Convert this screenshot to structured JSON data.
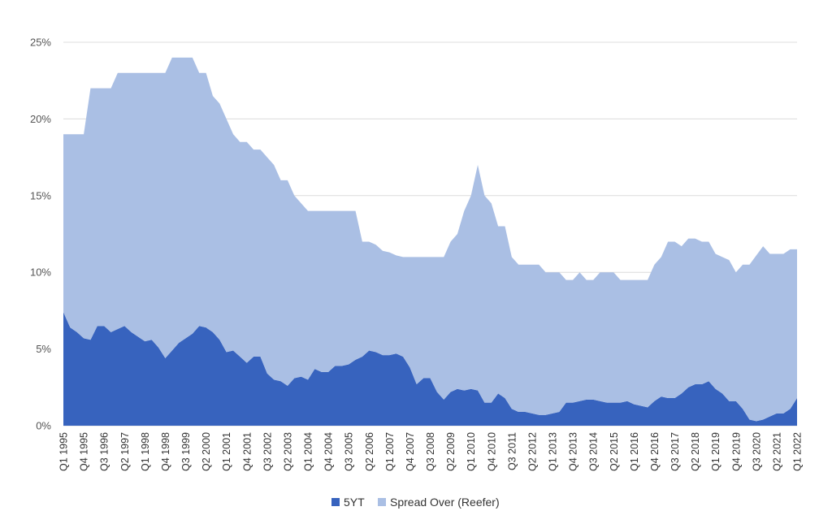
{
  "chart_data": {
    "type": "area",
    "stacked": true,
    "ylim": [
      0,
      0.25
    ],
    "y_ticks": [
      {
        "value": 0,
        "label": "0%"
      },
      {
        "value": 0.05,
        "label": "5%"
      },
      {
        "value": 0.1,
        "label": "10%"
      },
      {
        "value": 0.15,
        "label": "15%"
      },
      {
        "value": 0.2,
        "label": "20%"
      },
      {
        "value": 0.25,
        "label": "25%"
      }
    ],
    "grid": true,
    "legend_position": "bottom",
    "x_tick_labels": [
      "Q1 1995",
      "Q4 1995",
      "Q3 1996",
      "Q2 1997",
      "Q1 1998",
      "Q4 1998",
      "Q3 1999",
      "Q2 2000",
      "Q1 2001",
      "Q4 2001",
      "Q3 2002",
      "Q2 2003",
      "Q1 2004",
      "Q4 2004",
      "Q3 2005",
      "Q2 2006",
      "Q1 2007",
      "Q4 2007",
      "Q3 2008",
      "Q2 2009",
      "Q1 2010",
      "Q4 2010",
      "Q3 2011",
      "Q2 2012",
      "Q1 2013",
      "Q4 2013",
      "Q3 2014",
      "Q2 2015",
      "Q1 2016",
      "Q4 2016",
      "Q3 2017",
      "Q2 2018",
      "Q1 2019",
      "Q4 2019",
      "Q3 2020",
      "Q2 2021",
      "Q1 2022"
    ],
    "series": [
      {
        "name": "5YT",
        "color": "#3763be",
        "values": [
          0.074,
          0.064,
          0.061,
          0.057,
          0.056,
          0.065,
          0.065,
          0.061,
          0.063,
          0.065,
          0.061,
          0.058,
          0.055,
          0.056,
          0.051,
          0.044,
          0.049,
          0.054,
          0.057,
          0.06,
          0.065,
          0.064,
          0.061,
          0.056,
          0.048,
          0.049,
          0.045,
          0.041,
          0.045,
          0.045,
          0.034,
          0.03,
          0.029,
          0.026,
          0.031,
          0.032,
          0.03,
          0.037,
          0.035,
          0.035,
          0.039,
          0.039,
          0.04,
          0.043,
          0.045,
          0.049,
          0.048,
          0.046,
          0.046,
          0.047,
          0.045,
          0.038,
          0.027,
          0.031,
          0.031,
          0.022,
          0.017,
          0.022,
          0.024,
          0.023,
          0.024,
          0.023,
          0.015,
          0.015,
          0.021,
          0.018,
          0.011,
          0.009,
          0.009,
          0.008,
          0.007,
          0.007,
          0.008,
          0.009,
          0.015,
          0.015,
          0.016,
          0.017,
          0.017,
          0.016,
          0.015,
          0.015,
          0.015,
          0.016,
          0.014,
          0.013,
          0.012,
          0.016,
          0.019,
          0.018,
          0.018,
          0.021,
          0.025,
          0.027,
          0.027,
          0.029,
          0.024,
          0.021,
          0.016,
          0.016,
          0.011,
          0.004,
          0.003,
          0.004,
          0.006,
          0.008,
          0.008,
          0.011,
          0.018
        ]
      },
      {
        "name": "Spread Over (Reefer)",
        "color": "#aabfe4",
        "values": [
          0.116,
          0.126,
          0.129,
          0.133,
          0.164,
          0.155,
          0.155,
          0.159,
          0.167,
          0.165,
          0.169,
          0.172,
          0.175,
          0.174,
          0.179,
          0.186,
          0.191,
          0.186,
          0.183,
          0.18,
          0.165,
          0.166,
          0.154,
          0.154,
          0.152,
          0.141,
          0.14,
          0.144,
          0.135,
          0.135,
          0.141,
          0.14,
          0.131,
          0.134,
          0.119,
          0.113,
          0.11,
          0.103,
          0.105,
          0.105,
          0.101,
          0.101,
          0.1,
          0.097,
          0.075,
          0.071,
          0.07,
          0.068,
          0.067,
          0.064,
          0.065,
          0.072,
          0.083,
          0.079,
          0.079,
          0.088,
          0.093,
          0.098,
          0.101,
          0.117,
          0.126,
          0.147,
          0.135,
          0.13,
          0.109,
          0.112,
          0.099,
          0.096,
          0.096,
          0.097,
          0.098,
          0.093,
          0.092,
          0.091,
          0.08,
          0.08,
          0.084,
          0.078,
          0.078,
          0.084,
          0.085,
          0.085,
          0.08,
          0.079,
          0.081,
          0.082,
          0.083,
          0.089,
          0.091,
          0.102,
          0.102,
          0.096,
          0.097,
          0.095,
          0.093,
          0.091,
          0.088,
          0.089,
          0.092,
          0.084,
          0.094,
          0.101,
          0.108,
          0.113,
          0.106,
          0.104,
          0.104,
          0.104,
          0.097
        ]
      }
    ]
  }
}
